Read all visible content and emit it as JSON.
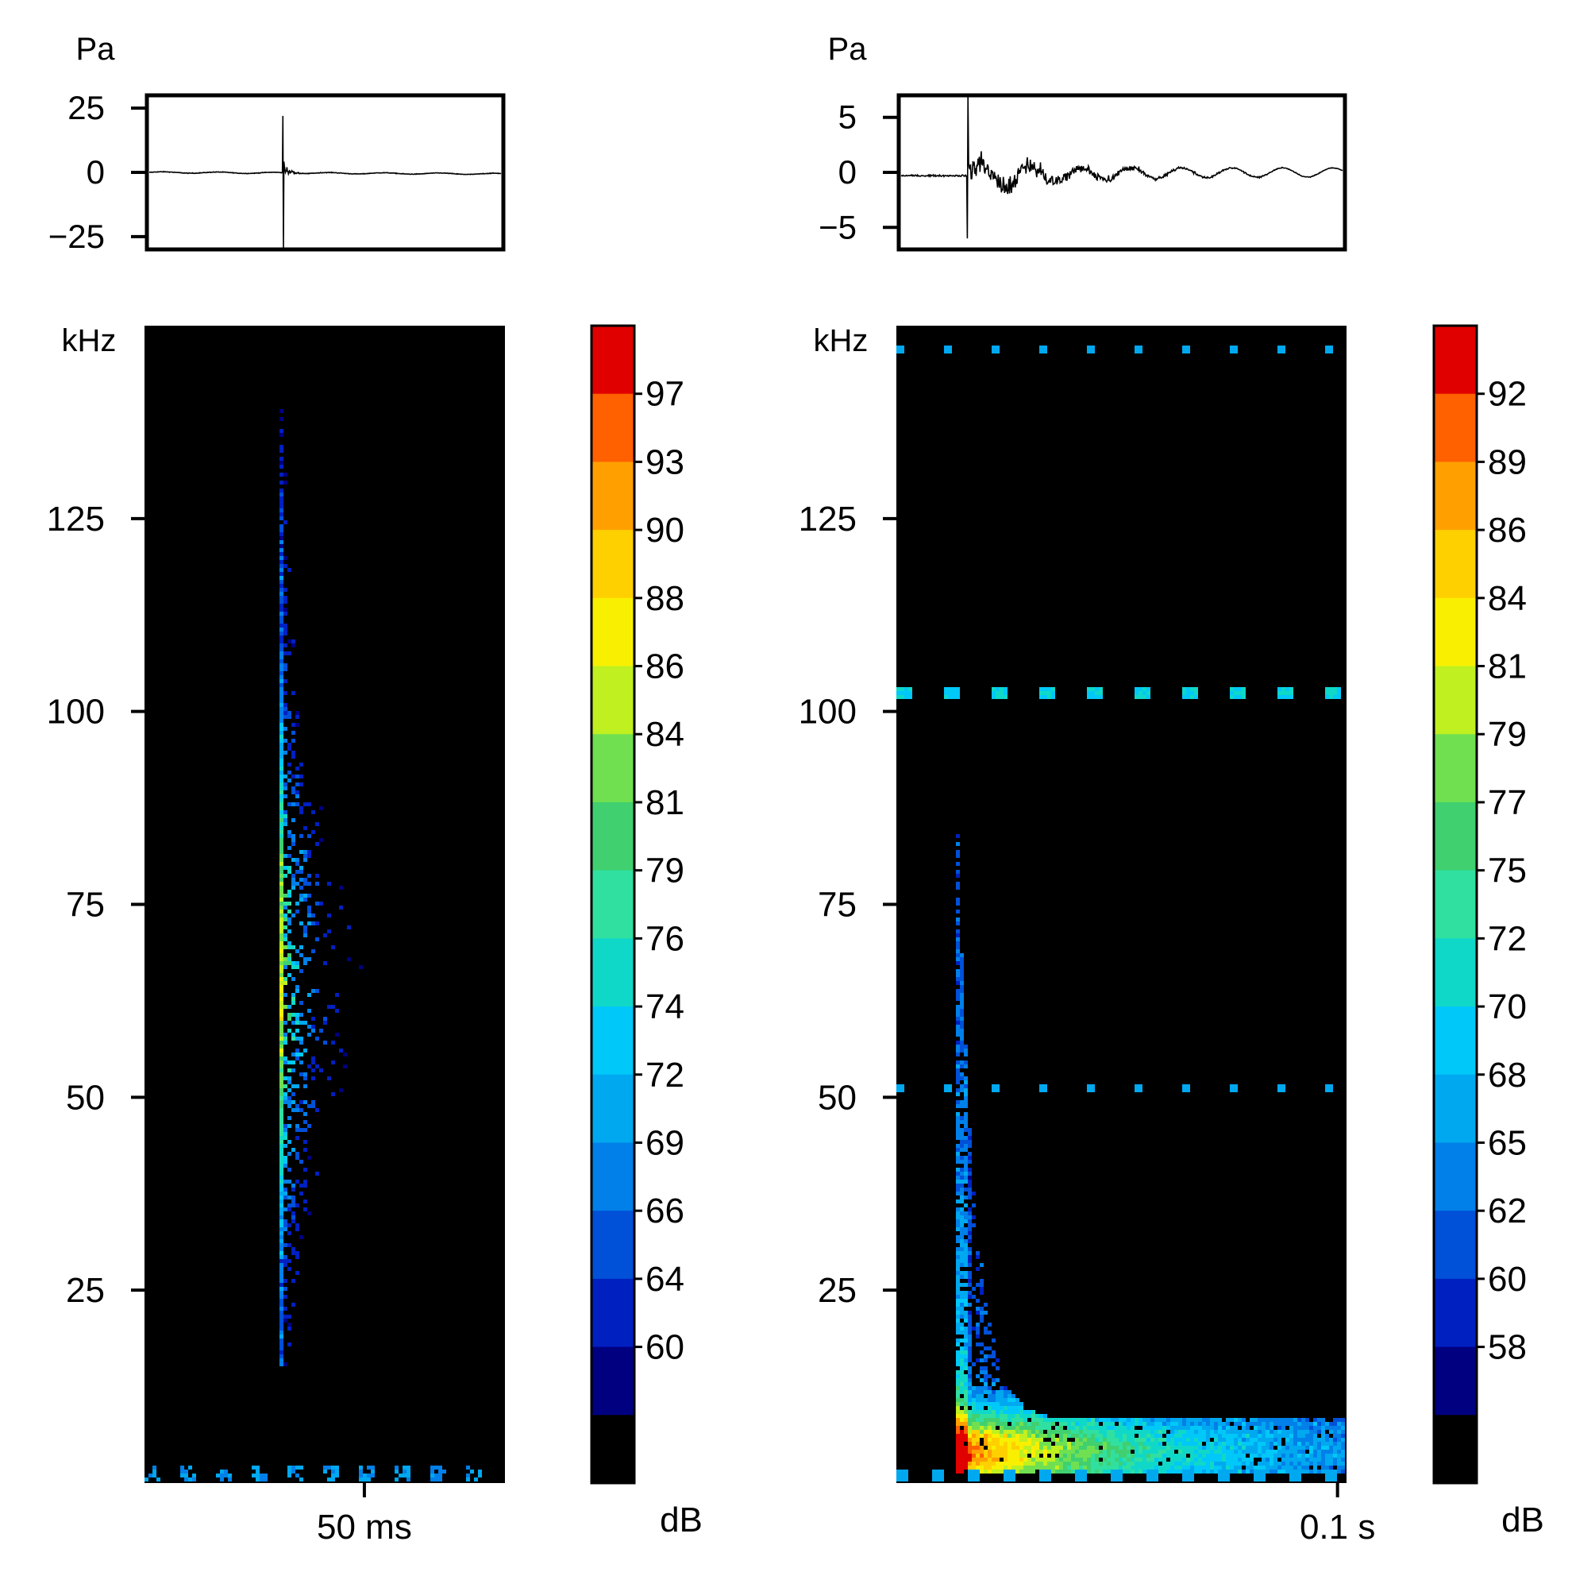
{
  "panels": [
    {
      "waveform": {
        "unit_label": "Pa",
        "yticks": [
          25,
          0,
          -25
        ],
        "ytick_labels": [
          "25",
          "0",
          "−25"
        ],
        "ylim": [
          -30,
          30
        ]
      },
      "spectrogram": {
        "unit_label": "kHz",
        "yticks": [
          25,
          50,
          75,
          100,
          125
        ],
        "ylim": [
          0,
          150
        ],
        "time_tick_label": "50 ms",
        "time_tick_fraction": 0.61
      },
      "colorbar": {
        "unit_label": "dB",
        "tick_labels": [
          "97",
          "93",
          "90",
          "88",
          "86",
          "84",
          "81",
          "79",
          "76",
          "74",
          "72",
          "69",
          "66",
          "64",
          "60"
        ]
      }
    },
    {
      "waveform": {
        "unit_label": "Pa",
        "yticks": [
          5,
          0,
          -5
        ],
        "ytick_labels": [
          "5",
          "0",
          "−5"
        ],
        "ylim": [
          -7,
          7
        ]
      },
      "spectrogram": {
        "unit_label": "kHz",
        "yticks": [
          25,
          50,
          75,
          100,
          125
        ],
        "ylim": [
          0,
          150
        ],
        "time_tick_label": "0.1 s",
        "time_tick_fraction": 0.98
      },
      "colorbar": {
        "unit_label": "dB",
        "tick_labels": [
          "92",
          "89",
          "86",
          "84",
          "81",
          "79",
          "77",
          "75",
          "72",
          "70",
          "68",
          "65",
          "62",
          "60",
          "58"
        ]
      }
    }
  ],
  "colors": {
    "colormap": [
      "#000080",
      "#0020c0",
      "#0050d8",
      "#0080e8",
      "#00a8f0",
      "#00c8f8",
      "#10d8c8",
      "#30e0a0",
      "#40d070",
      "#70e050",
      "#c0f020",
      "#f8f000",
      "#ffd000",
      "#ffa000",
      "#ff6000",
      "#e00000"
    ],
    "background": "#000000"
  },
  "chart_data": [
    {
      "type": "line",
      "ylabel": "Pa",
      "ylim": [
        -30,
        30
      ],
      "yticks": [
        25,
        0,
        -25
      ],
      "shape": "single sharp click transient near 38% of the window, peaking ~ +22 Pa and ~ -30 Pa, then quiet baseline"
    },
    {
      "type": "heatmap",
      "ylabel": "kHz",
      "ylim": [
        0,
        150
      ],
      "yticks": [
        25,
        50,
        75,
        100,
        125
      ],
      "xtick": "50 ms",
      "colorbar_label": "dB",
      "colorbar_ticks": [
        97,
        93,
        90,
        88,
        86,
        84,
        81,
        79,
        76,
        74,
        72,
        69,
        66,
        64,
        60
      ],
      "shape": "broadband vertical energy stripe at the click (~38% of window) spanning ~15-145 kHz, strongest (~84-88 dB) around 55-75 kHz"
    },
    {
      "type": "line",
      "ylabel": "Pa",
      "ylim": [
        -7,
        7
      ],
      "yticks": [
        5,
        0,
        -5
      ],
      "shape": "sharp onset near 15% of the window reaching ~ +7 / -6 Pa, followed by decaying oscillation to the end"
    },
    {
      "type": "heatmap",
      "ylabel": "kHz",
      "ylim": [
        0,
        150
      ],
      "yticks": [
        25,
        50,
        75,
        100,
        125
      ],
      "xtick": "0.1 s",
      "colorbar_label": "dB",
      "colorbar_ticks": [
        92,
        89,
        86,
        84,
        81,
        79,
        77,
        75,
        72,
        70,
        68,
        65,
        62,
        60,
        58
      ],
      "shape": "onset at ~15% of the window spanning up to ~88 kHz, energy decaying and concentrating below ~20 kHz, strongest (~86-92 dB) at ~4 kHz; faint tone lines near 102, 51 and 147 kHz"
    }
  ]
}
